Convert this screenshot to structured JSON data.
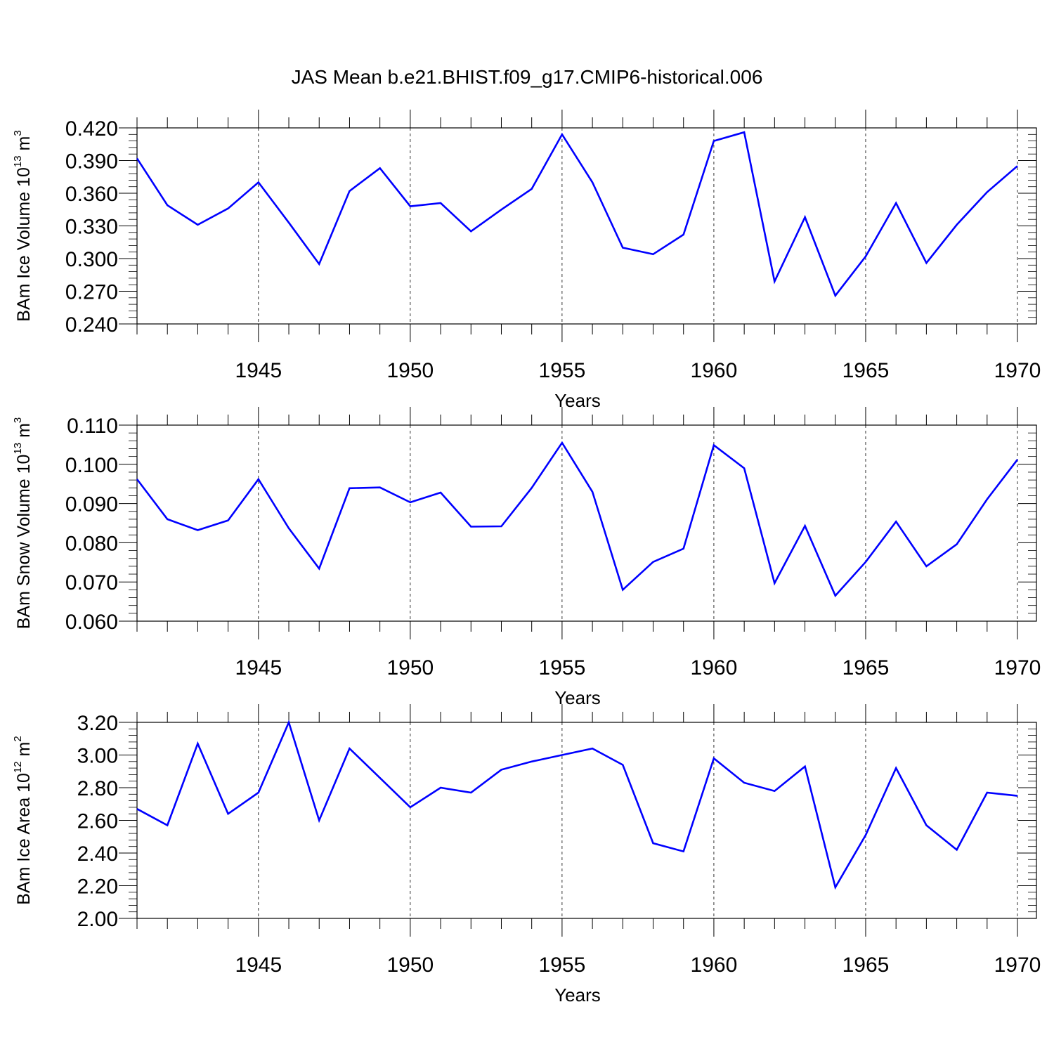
{
  "title": "JAS Mean b.e21.BHIST.f09_g17.CMIP6-historical.006",
  "colors": {
    "line": "#0000ff",
    "axis": "#000000",
    "grid": "#000000"
  },
  "chart_data": [
    {
      "type": "line",
      "name": "ice-volume",
      "ylabel_main": "BAm Ice Volume 10",
      "ylabel_exp": "13",
      "ylabel_unit": " m",
      "ylabel_unit_exp": "3",
      "xlabel": "Years",
      "xlim": [
        1941,
        1970
      ],
      "ylim": [
        0.24,
        0.42
      ],
      "yticks": [
        "0.240",
        "0.270",
        "0.300",
        "0.330",
        "0.360",
        "0.390",
        "0.420"
      ],
      "xticks": [
        "1945",
        "1950",
        "1955",
        "1960",
        "1965",
        "1970"
      ],
      "x": [
        1941,
        1942,
        1943,
        1944,
        1945,
        1946,
        1947,
        1948,
        1949,
        1950,
        1951,
        1952,
        1953,
        1954,
        1955,
        1956,
        1957,
        1958,
        1959,
        1960,
        1961,
        1962,
        1963,
        1964,
        1965,
        1966,
        1967,
        1968,
        1969,
        1970
      ],
      "values": [
        0.392,
        0.349,
        0.331,
        0.346,
        0.37,
        0.333,
        0.295,
        0.362,
        0.383,
        0.348,
        0.351,
        0.325,
        0.345,
        0.364,
        0.414,
        0.37,
        0.31,
        0.304,
        0.322,
        0.408,
        0.416,
        0.279,
        0.338,
        0.266,
        0.302,
        0.351,
        0.296,
        0.331,
        0.361,
        0.385
      ]
    },
    {
      "type": "line",
      "name": "snow-volume",
      "ylabel_main": "BAm Snow Volume 10",
      "ylabel_exp": "13",
      "ylabel_unit": " m",
      "ylabel_unit_exp": "3",
      "xlabel": "Years",
      "xlim": [
        1941,
        1970
      ],
      "ylim": [
        0.06,
        0.11
      ],
      "yticks": [
        "0.060",
        "0.070",
        "0.080",
        "0.090",
        "0.100",
        "0.110"
      ],
      "xticks": [
        "1945",
        "1950",
        "1955",
        "1960",
        "1965",
        "1970"
      ],
      "x": [
        1941,
        1942,
        1943,
        1944,
        1945,
        1946,
        1947,
        1948,
        1949,
        1950,
        1951,
        1952,
        1953,
        1954,
        1955,
        1956,
        1957,
        1958,
        1959,
        1960,
        1961,
        1962,
        1963,
        1964,
        1965,
        1966,
        1967,
        1968,
        1969,
        1970
      ],
      "values": [
        0.0962,
        0.086,
        0.0832,
        0.0857,
        0.0962,
        0.0837,
        0.0734,
        0.0939,
        0.0941,
        0.0903,
        0.0928,
        0.0841,
        0.0842,
        0.094,
        0.1055,
        0.093,
        0.068,
        0.0751,
        0.0785,
        0.1049,
        0.099,
        0.0697,
        0.0843,
        0.0665,
        0.0751,
        0.0854,
        0.074,
        0.0796,
        0.0911,
        0.1012
      ]
    },
    {
      "type": "line",
      "name": "ice-area",
      "ylabel_main": "BAm Ice Area 10",
      "ylabel_exp": "12",
      "ylabel_unit": " m",
      "ylabel_unit_exp": "2",
      "xlabel": "Years",
      "xlim": [
        1941,
        1970
      ],
      "ylim": [
        2.0,
        3.2
      ],
      "yticks": [
        "2.00",
        "2.20",
        "2.40",
        "2.60",
        "2.80",
        "3.00",
        "3.20"
      ],
      "xticks": [
        "1945",
        "1950",
        "1955",
        "1960",
        "1965",
        "1970"
      ],
      "x": [
        1941,
        1942,
        1943,
        1944,
        1945,
        1946,
        1947,
        1948,
        1949,
        1950,
        1951,
        1952,
        1953,
        1954,
        1955,
        1956,
        1957,
        1958,
        1959,
        1960,
        1961,
        1962,
        1963,
        1964,
        1965,
        1966,
        1967,
        1968,
        1969,
        1970
      ],
      "values": [
        2.67,
        2.57,
        3.07,
        2.64,
        2.77,
        3.2,
        2.6,
        3.04,
        2.86,
        2.68,
        2.8,
        2.77,
        2.91,
        2.96,
        3.0,
        3.04,
        2.94,
        2.46,
        2.41,
        2.98,
        2.83,
        2.78,
        2.93,
        2.19,
        2.51,
        2.92,
        2.57,
        2.42,
        2.77,
        2.75
      ]
    }
  ]
}
